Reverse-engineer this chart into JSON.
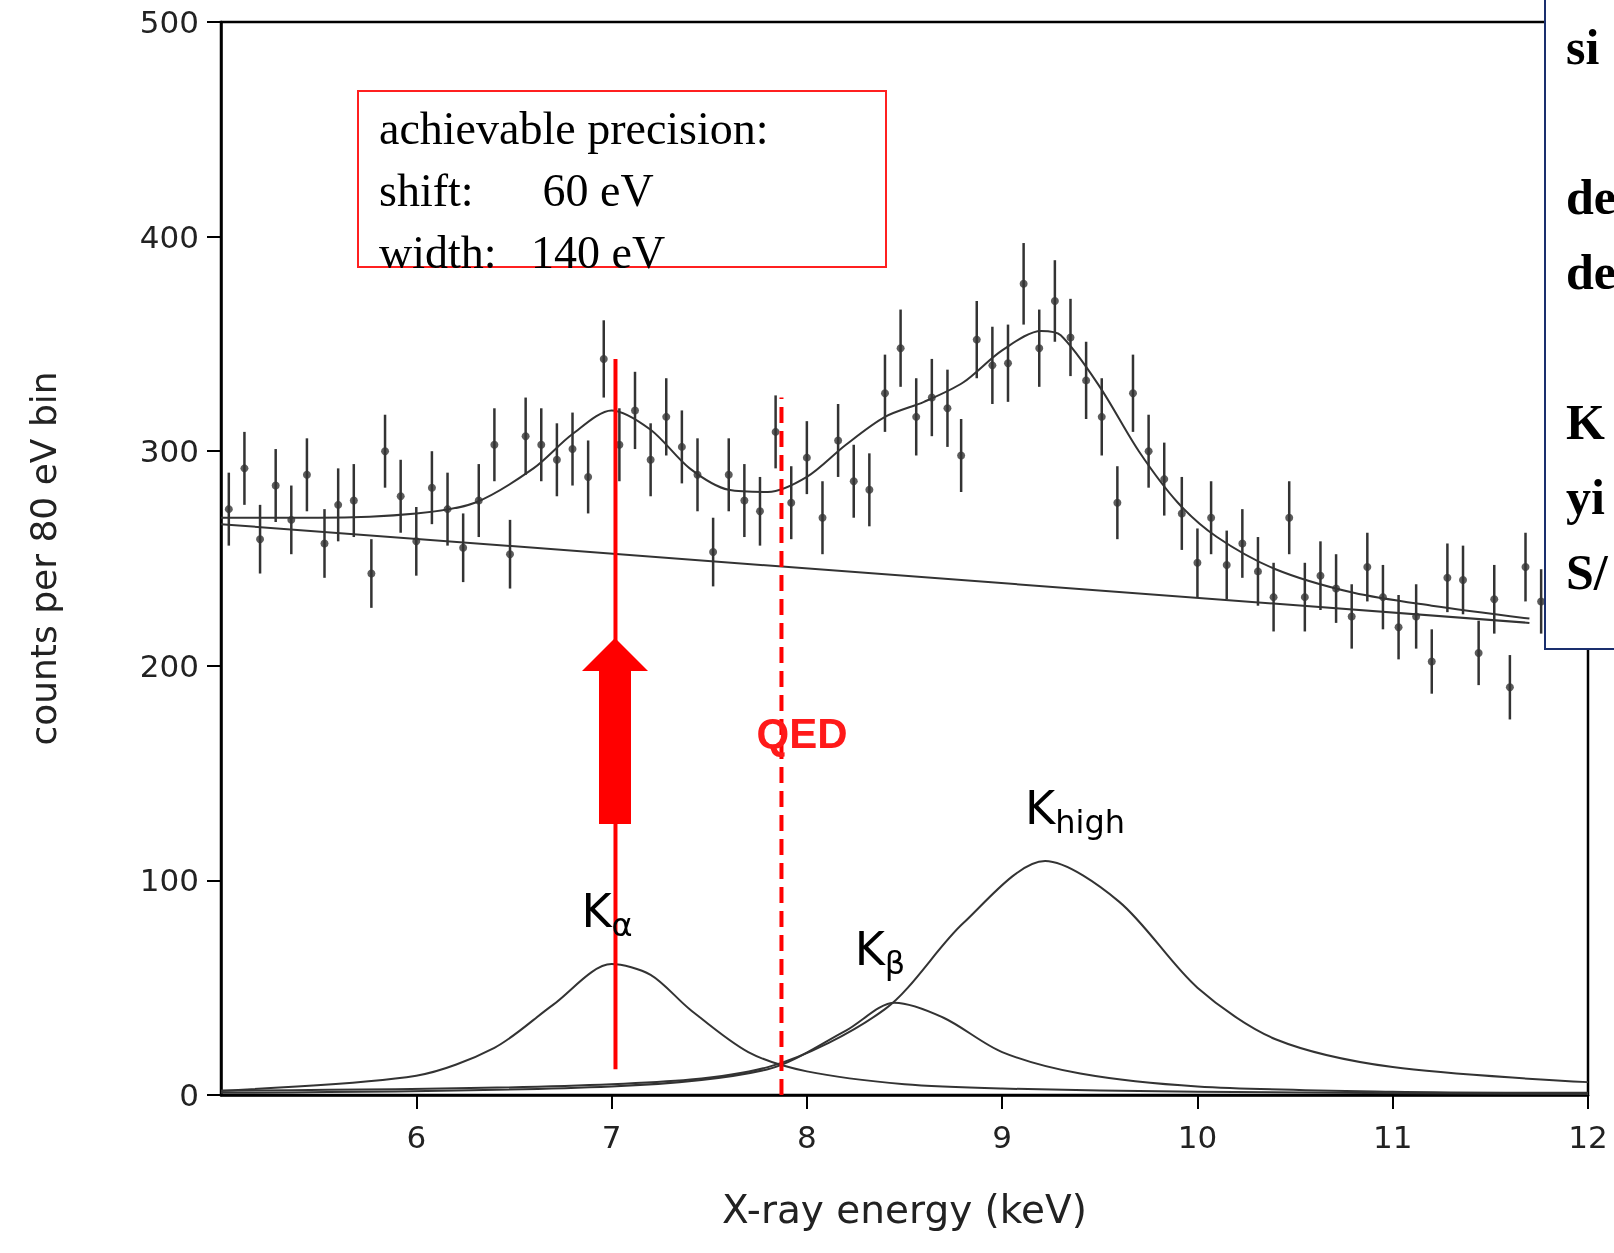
{
  "chart_data": {
    "type": "scatter",
    "xlabel": "X-ray energy (keV)",
    "ylabel": "counts per 80 eV bin",
    "xlim": [
      5,
      12
    ],
    "xticks": [
      6,
      7,
      8,
      9,
      10,
      11,
      12
    ],
    "ylim": [
      0,
      500
    ],
    "yticks": [
      0,
      100,
      200,
      300,
      400,
      500
    ],
    "grid": false,
    "series": [
      {
        "color": "#333333",
        "marker": "circle",
        "x": [
          5.04,
          5.12,
          5.2,
          5.28,
          5.36,
          5.44,
          5.53,
          5.6,
          5.68,
          5.77,
          5.84,
          5.92,
          6.0,
          6.08,
          6.16,
          6.24,
          6.32,
          6.4,
          6.48,
          6.56,
          6.64,
          6.72,
          6.8,
          6.88,
          6.96,
          7.04,
          7.12,
          7.2,
          7.28,
          7.36,
          7.44,
          7.52,
          7.6,
          7.68,
          7.76,
          7.84,
          7.92,
          8.0,
          8.08,
          8.16,
          8.24,
          8.32,
          8.4,
          8.48,
          8.56,
          8.64,
          8.72,
          8.79,
          8.87,
          8.95,
          9.03,
          9.11,
          9.19,
          9.27,
          9.35,
          9.43,
          9.51,
          9.59,
          9.67,
          9.75,
          9.83,
          9.92,
          10.0,
          10.07,
          10.15,
          10.23,
          10.31,
          10.39,
          10.47,
          10.55,
          10.63,
          10.71,
          10.79,
          10.87,
          10.95,
          11.03,
          11.12,
          11.2,
          11.28,
          11.36,
          11.44,
          11.52,
          11.6,
          11.68,
          11.76
        ],
        "values": [
          273,
          292,
          259,
          284,
          268,
          289,
          257,
          275,
          277,
          243,
          300,
          279,
          258,
          283,
          273,
          255,
          277,
          303,
          252,
          307,
          303,
          296,
          301,
          288,
          343,
          303,
          319,
          296,
          316,
          302,
          289,
          253,
          289,
          277,
          272,
          309,
          276,
          297,
          269,
          305,
          286,
          282,
          327,
          348,
          316,
          325,
          320,
          298,
          352,
          340,
          341,
          378,
          348,
          370,
          353,
          333,
          316,
          276,
          327,
          300,
          287,
          271,
          248,
          269,
          247,
          257,
          244,
          232,
          269,
          232,
          242,
          236,
          223,
          246,
          232,
          218,
          223,
          202,
          241,
          240,
          206,
          231,
          190,
          246,
          230
        ],
        "errors": [
          17,
          17,
          16,
          17,
          16,
          17,
          16,
          17,
          17,
          16,
          17,
          17,
          16,
          17,
          17,
          16,
          17,
          17,
          16,
          18,
          17,
          17,
          17,
          17,
          18,
          17,
          18,
          17,
          18,
          17,
          17,
          16,
          17,
          17,
          16,
          17,
          17,
          17,
          17,
          17,
          17,
          17,
          18,
          18,
          18,
          18,
          18,
          17,
          18,
          18,
          18,
          19,
          18,
          19,
          18,
          18,
          18,
          17,
          18,
          17,
          17,
          17,
          16,
          17,
          16,
          16,
          16,
          16,
          17,
          16,
          16,
          16,
          15,
          16,
          15,
          15,
          15,
          15,
          16,
          16,
          15,
          16,
          15,
          16,
          15
        ]
      },
      {
        "type": "line",
        "color": "#333333",
        "marker": "none",
        "line_style": "solid",
        "x": [
          5,
          5.5,
          6,
          6.3,
          6.6,
          6.8,
          7,
          7.2,
          7.4,
          7.6,
          7.8,
          8,
          8.2,
          8.4,
          8.6,
          8.8,
          9,
          9.2,
          9.3,
          9.5,
          9.7,
          9.9,
          10.1,
          10.4,
          10.8,
          11.2,
          11.7
        ],
        "values": [
          269,
          269,
          271,
          276,
          292,
          308,
          319,
          310,
          292,
          282,
          281,
          288,
          303,
          316,
          323,
          332,
          347,
          356,
          354,
          330,
          300,
          276,
          260,
          245,
          234,
          228,
          222
        ]
      },
      {
        "type": "line",
        "color": "#333333",
        "marker": "none",
        "line_style": "solid",
        "x": [
          5,
          11.7
        ],
        "values": [
          266,
          220
        ]
      },
      {
        "type": "line",
        "color": "#333333",
        "marker": "none",
        "line_style": "solid",
        "x": [
          5,
          6,
          6.4,
          6.7,
          7.0,
          7.2,
          7.4,
          7.7,
          8.0,
          8.5,
          9,
          10,
          12
        ],
        "values": [
          2,
          9,
          22,
          42,
          61,
          56,
          40,
          20,
          11,
          5,
          3,
          1.5,
          0.5
        ]
      },
      {
        "type": "line",
        "color": "#333333",
        "marker": "none",
        "line_style": "solid",
        "x": [
          5,
          7,
          7.8,
          8.2,
          8.45,
          8.7,
          9.0,
          9.4,
          10,
          11,
          12
        ],
        "values": [
          1,
          4,
          12,
          30,
          43,
          36,
          20,
          10,
          4,
          1.5,
          1
        ]
      },
      {
        "type": "line",
        "color": "#333333",
        "marker": "none",
        "line_style": "solid",
        "x": [
          5,
          7,
          7.8,
          8.4,
          8.8,
          9.22,
          9.6,
          10.0,
          10.4,
          11,
          12
        ],
        "values": [
          2,
          5,
          13,
          40,
          80,
          109,
          90,
          50,
          26,
          13,
          6
        ]
      },
      {
        "type": "line",
        "color": "#ff0000",
        "marker": "none",
        "line_style": "solid",
        "x": [
          7.02,
          7.02
        ],
        "values": [
          12,
          343
        ]
      },
      {
        "type": "line",
        "color": "#ff0000",
        "marker": "none",
        "line_style": "dashed",
        "x": [
          7.87,
          7.87
        ],
        "values": [
          0,
          325
        ]
      }
    ],
    "annotations": [
      "achievable precision:\nshift:      60 eV\nwidth:   140 eV",
      "si\n\nde\nde\n\nK\nyi\nS/",
      "QED",
      "K$_{α}$",
      "K$_{β}$",
      "K$_{high}$"
    ]
  }
}
